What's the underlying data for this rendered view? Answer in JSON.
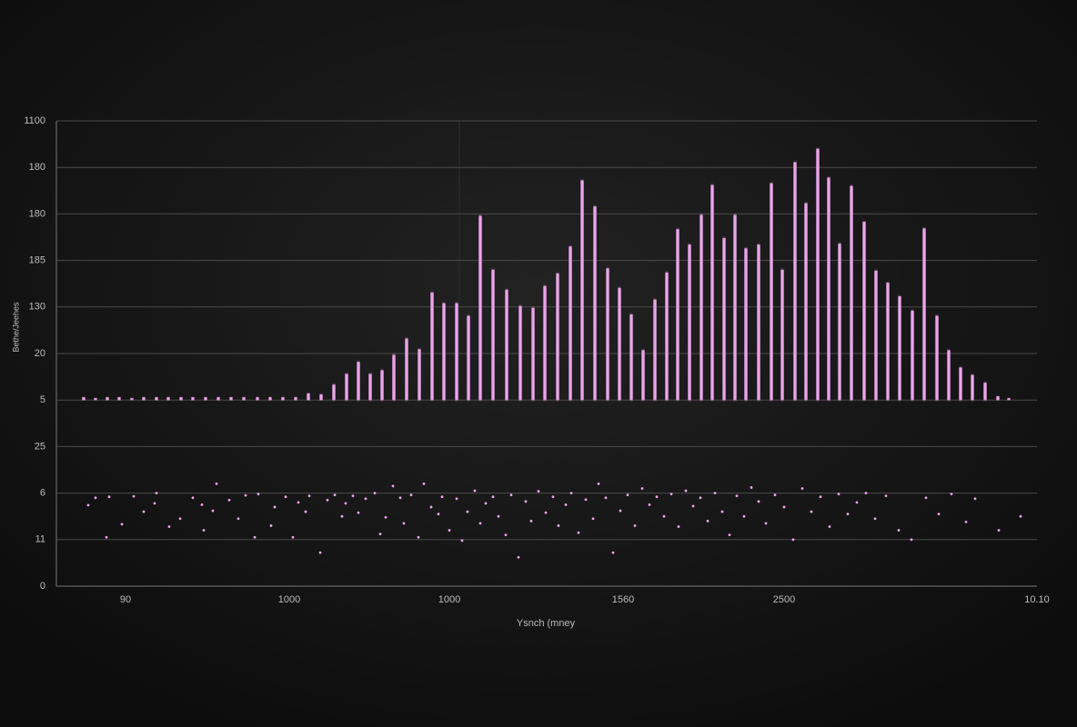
{
  "chart_data": {
    "type": "bar",
    "x_label": "Ysnch (mney",
    "y_label": "Bethe/Jeehes",
    "xlim": [
      0,
      1078
    ],
    "ylim": [
      0,
      10
    ],
    "bar_base": 4,
    "grid": true,
    "xticks": [
      {
        "value": 76,
        "label": "90"
      },
      {
        "value": 256,
        "label": "1000"
      },
      {
        "value": 432,
        "label": "1000"
      },
      {
        "value": 623,
        "label": "1560"
      },
      {
        "value": 800,
        "label": "2500"
      },
      {
        "value": 1078,
        "label": "10.10"
      }
    ],
    "yticks": [
      {
        "value": 0,
        "label": "0"
      },
      {
        "value": 1,
        "label": "11"
      },
      {
        "value": 2,
        "label": "6"
      },
      {
        "value": 3,
        "label": "25"
      },
      {
        "value": 4,
        "label": "5"
      },
      {
        "value": 5,
        "label": "20"
      },
      {
        "value": 6,
        "label": "130"
      },
      {
        "value": 7,
        "label": "185"
      },
      {
        "value": 8,
        "label": "180"
      },
      {
        "value": 9,
        "label": "180"
      },
      {
        "value": 10,
        "label": "1100"
      }
    ],
    "bars": {
      "color": "#eaa4e8",
      "x": [
        30,
        43,
        56,
        69,
        83,
        96,
        110,
        123,
        137,
        150,
        164,
        178,
        192,
        206,
        221,
        235,
        249,
        263,
        277,
        291,
        305,
        319,
        332,
        345,
        358,
        371,
        385,
        399,
        413,
        426,
        440,
        453,
        466,
        480,
        495,
        510,
        524,
        537,
        551,
        565,
        578,
        592,
        606,
        619,
        632,
        645,
        658,
        671,
        683,
        696,
        709,
        721,
        734,
        746,
        758,
        772,
        786,
        798,
        812,
        824,
        837,
        849,
        861,
        874,
        888,
        901,
        914,
        927,
        941,
        954,
        968,
        981,
        994,
        1007,
        1021,
        1035,
        1047
      ],
      "values": [
        4.06,
        4.04,
        4.06,
        4.06,
        4.04,
        4.06,
        4.06,
        4.06,
        4.06,
        4.06,
        4.06,
        4.06,
        4.06,
        4.06,
        4.06,
        4.06,
        4.06,
        4.06,
        4.14,
        4.12,
        4.33,
        4.56,
        4.82,
        4.56,
        4.64,
        4.97,
        5.32,
        5.09,
        6.31,
        6.08,
        6.08,
        5.81,
        7.96,
        6.8,
        6.37,
        6.02,
        5.98,
        6.45,
        6.72,
        7.3,
        8.72,
        8.16,
        6.83,
        6.41,
        5.84,
        5.07,
        6.16,
        6.74,
        7.67,
        7.34,
        7.98,
        8.62,
        7.48,
        7.98,
        7.26,
        7.34,
        8.66,
        6.8,
        9.11,
        8.23,
        9.4,
        8.78,
        7.36,
        8.6,
        7.83,
        6.78,
        6.52,
        6.23,
        5.92,
        7.69,
        5.81,
        5.07,
        4.7,
        4.54,
        4.37,
        4.08,
        4.04
      ]
    },
    "points": {
      "color": "#f2a2ee",
      "x": [
        35,
        43,
        55,
        58,
        72,
        85,
        96,
        108,
        110,
        124,
        136,
        150,
        160,
        162,
        172,
        176,
        190,
        200,
        208,
        218,
        222,
        236,
        240,
        252,
        260,
        266,
        274,
        278,
        290,
        298,
        306,
        314,
        318,
        326,
        332,
        340,
        350,
        356,
        362,
        370,
        378,
        382,
        390,
        398,
        404,
        412,
        420,
        424,
        432,
        440,
        446,
        452,
        460,
        466,
        472,
        480,
        486,
        494,
        500,
        508,
        516,
        522,
        530,
        538,
        546,
        552,
        560,
        566,
        574,
        582,
        590,
        596,
        604,
        612,
        620,
        628,
        636,
        644,
        652,
        660,
        668,
        676,
        684,
        692,
        700,
        708,
        716,
        724,
        732,
        740,
        748,
        756,
        764,
        772,
        780,
        790,
        800,
        810,
        820,
        830,
        840,
        850,
        860,
        870,
        880,
        890,
        900,
        912,
        926,
        940,
        956,
        970,
        984,
        1000,
        1010,
        1036,
        1060
      ],
      "y": [
        1.74,
        1.9,
        1.05,
        1.92,
        1.33,
        1.93,
        1.6,
        1.78,
        2.0,
        1.28,
        1.45,
        1.9,
        1.75,
        1.2,
        1.62,
        2.2,
        1.85,
        1.45,
        1.95,
        1.05,
        1.98,
        1.3,
        1.7,
        1.92,
        1.05,
        1.8,
        1.6,
        1.94,
        0.72,
        1.85,
        1.96,
        1.5,
        1.78,
        1.94,
        1.58,
        1.88,
        2.0,
        1.12,
        1.48,
        2.15,
        1.9,
        1.35,
        1.96,
        1.05,
        2.2,
        1.7,
        1.55,
        1.92,
        1.2,
        1.88,
        0.98,
        1.6,
        2.05,
        1.35,
        1.78,
        1.92,
        1.5,
        1.1,
        1.96,
        0.62,
        1.82,
        1.4,
        2.04,
        1.58,
        1.92,
        1.3,
        1.75,
        2.0,
        1.15,
        1.86,
        1.45,
        2.2,
        1.9,
        0.72,
        1.62,
        1.96,
        1.3,
        2.1,
        1.75,
        1.92,
        1.5,
        1.98,
        1.28,
        2.05,
        1.72,
        1.9,
        1.4,
        2.0,
        1.6,
        1.1,
        1.94,
        1.5,
        2.12,
        1.82,
        1.35,
        1.96,
        1.7,
        1.0,
        2.1,
        1.6,
        1.92,
        1.28,
        1.98,
        1.55,
        1.8,
        2.0,
        1.45,
        1.94,
        1.2,
        1.0,
        1.9,
        1.55,
        1.98,
        1.38,
        1.88,
        1.2,
        1.5
      ]
    }
  }
}
